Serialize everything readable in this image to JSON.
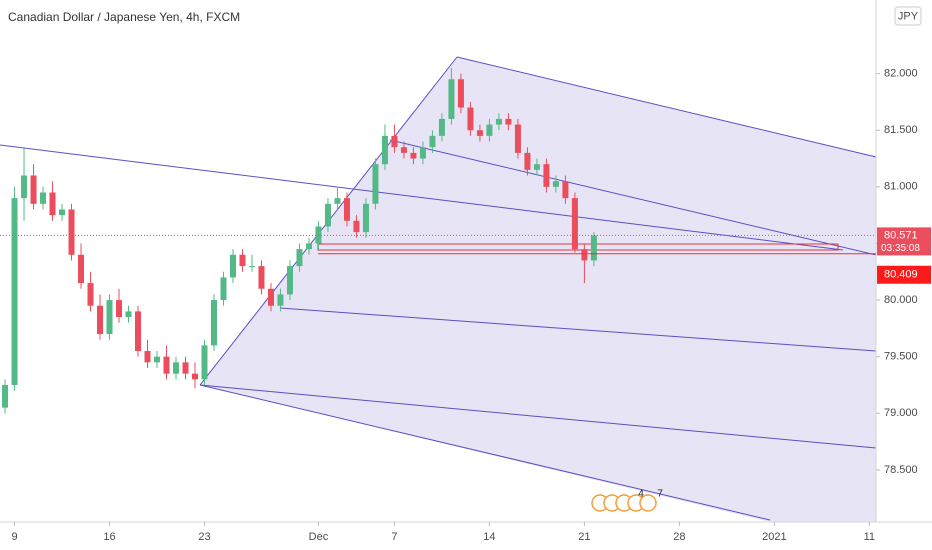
{
  "chart_data": {
    "type": "candlestick",
    "title": "Canadian Dollar / Japanese Yen, 4h, FXCM",
    "currency": "JPY",
    "categories": [
      null,
      null,
      null,
      null,
      null,
      null,
      null,
      null,
      null,
      null,
      null,
      null,
      null,
      null,
      null,
      null,
      null,
      null,
      null,
      null,
      null,
      null,
      null,
      null,
      null,
      null,
      null,
      null,
      null,
      null,
      null,
      null,
      null,
      null,
      null,
      null,
      null,
      null,
      null,
      null,
      null,
      null,
      null,
      null,
      null,
      null,
      null,
      null,
      null,
      null,
      null,
      null,
      null,
      null,
      null,
      null,
      null,
      null,
      null,
      null,
      null,
      null,
      null
    ],
    "open": [
      79.05,
      79.25,
      80.9,
      81.1,
      80.85,
      80.95,
      80.75,
      80.8,
      80.4,
      80.15,
      79.95,
      79.7,
      80.0,
      79.85,
      79.9,
      79.55,
      79.45,
      79.5,
      79.35,
      79.45,
      79.35,
      79.3,
      79.6,
      80.0,
      80.2,
      80.4,
      80.3,
      80.3,
      80.1,
      79.95,
      80.05,
      80.3,
      80.45,
      80.5,
      80.65,
      80.85,
      80.9,
      80.7,
      80.6,
      80.85,
      81.2,
      81.45,
      81.35,
      81.3,
      81.25,
      81.35,
      81.45,
      81.6,
      81.95,
      81.7,
      81.5,
      81.45,
      81.55,
      81.6,
      81.55,
      81.3,
      81.15,
      81.2,
      81.0,
      81.05,
      80.9,
      80.45,
      80.35
    ],
    "high": [
      79.3,
      81.0,
      81.35,
      81.2,
      81.0,
      81.05,
      80.85,
      80.85,
      80.5,
      80.25,
      80.05,
      80.05,
      80.1,
      79.95,
      79.95,
      79.65,
      79.55,
      79.6,
      79.5,
      79.5,
      79.45,
      79.65,
      80.05,
      80.25,
      80.45,
      80.45,
      80.4,
      80.35,
      80.15,
      80.1,
      80.35,
      80.5,
      80.55,
      80.7,
      80.9,
      81.0,
      80.95,
      80.75,
      80.9,
      81.25,
      81.55,
      81.55,
      81.4,
      81.35,
      81.4,
      81.5,
      81.65,
      82.05,
      82.0,
      81.75,
      81.55,
      81.6,
      81.65,
      81.65,
      81.6,
      81.35,
      81.25,
      81.25,
      81.1,
      81.1,
      80.95,
      80.5,
      80.6
    ],
    "low": [
      79.0,
      79.2,
      80.7,
      80.8,
      80.8,
      80.7,
      80.7,
      80.35,
      80.1,
      79.9,
      79.65,
      79.65,
      79.8,
      79.8,
      79.5,
      79.4,
      79.4,
      79.3,
      79.3,
      79.3,
      79.22,
      79.25,
      79.55,
      79.95,
      80.15,
      80.25,
      80.25,
      80.05,
      79.9,
      79.9,
      80.0,
      80.25,
      80.4,
      80.45,
      80.6,
      80.8,
      80.65,
      80.55,
      80.55,
      80.8,
      81.15,
      81.3,
      81.25,
      81.2,
      81.2,
      81.3,
      81.4,
      81.55,
      81.65,
      81.45,
      81.4,
      81.4,
      81.5,
      81.5,
      81.25,
      81.1,
      81.1,
      80.95,
      80.95,
      80.85,
      80.42,
      80.15,
      80.3
    ],
    "close": [
      79.25,
      80.9,
      81.1,
      80.85,
      80.95,
      80.75,
      80.8,
      80.4,
      80.15,
      79.95,
      79.7,
      80.0,
      79.85,
      79.9,
      79.55,
      79.45,
      79.5,
      79.35,
      79.45,
      79.35,
      79.3,
      79.6,
      80.0,
      80.2,
      80.4,
      80.3,
      80.3,
      80.1,
      79.95,
      80.05,
      80.3,
      80.45,
      80.5,
      80.65,
      80.85,
      80.9,
      80.7,
      80.6,
      80.85,
      81.2,
      81.45,
      81.35,
      81.3,
      81.25,
      81.35,
      81.45,
      81.6,
      81.95,
      81.7,
      81.5,
      81.45,
      81.55,
      81.6,
      81.55,
      81.3,
      81.15,
      81.2,
      81.0,
      81.05,
      80.9,
      80.45,
      80.35,
      80.571
    ],
    "up_color": "#53b987",
    "down_color": "#eb4d5c",
    "xlim": [
      -0.53,
      91.7
    ],
    "xticks": [
      {
        "value": 1,
        "label": "9"
      },
      {
        "value": 11,
        "label": "16"
      },
      {
        "value": 21,
        "label": "23"
      },
      {
        "value": 33,
        "label": "Dec"
      },
      {
        "value": 41,
        "label": "7"
      },
      {
        "value": 51,
        "label": "14"
      },
      {
        "value": 61,
        "label": "21"
      },
      {
        "value": 71,
        "label": "28"
      },
      {
        "value": 81,
        "label": "2021"
      },
      {
        "value": 91,
        "label": "11"
      }
    ],
    "ylim": [
      78.04,
      82.65
    ],
    "yticks": [
      {
        "value": 78.5,
        "label": "78.500"
      },
      {
        "value": 79,
        "label": "79.000"
      },
      {
        "value": 79.5,
        "label": "79.500"
      },
      {
        "value": 80,
        "label": "80.000"
      },
      {
        "value": 80.5,
        "label": "80.500"
      },
      {
        "value": 81,
        "label": "81.000"
      },
      {
        "value": 81.5,
        "label": "81.500"
      },
      {
        "value": 82,
        "label": "82.000"
      }
    ],
    "last_price": {
      "value": 80.571,
      "label": "80.571"
    },
    "countdown": "03:35:08",
    "level": {
      "value": 80.409,
      "label": "80.409"
    },
    "event_badges": [
      "4",
      "7"
    ]
  }
}
